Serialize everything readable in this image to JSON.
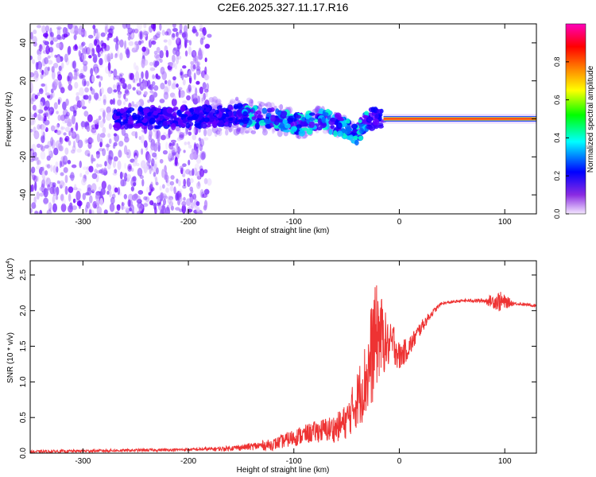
{
  "title": "C2E6.2025.327.11.17.R16",
  "chart_data": [
    {
      "type": "heatmap",
      "name": "spectrogram",
      "xlabel": "Height of straight line (km)",
      "ylabel": "Frequency (Hz)",
      "xlim": [
        -350,
        130
      ],
      "ylim": [
        -50,
        50
      ],
      "x_ticks": [
        "-300",
        "-200",
        "-100",
        "0",
        "100"
      ],
      "x_tick_values": [
        -300,
        -200,
        -100,
        0,
        100
      ],
      "y_ticks": [
        "40",
        "20",
        "0",
        "-20",
        "-40"
      ],
      "y_tick_values": [
        40,
        20,
        0,
        -20,
        -40
      ],
      "colorbar": {
        "label": "Normalized spectral amplitude",
        "range": [
          0,
          1
        ],
        "ticks": [
          "0.0",
          "0.2",
          "0.4",
          "0.6",
          "0.8"
        ],
        "tick_values": [
          0,
          0.2,
          0.4,
          0.6,
          0.8
        ],
        "colors": [
          "#ffffff",
          "#7700ff",
          "#0000ff",
          "#00ffff",
          "#00ff00",
          "#ffff00",
          "#ff8800",
          "#ff0000",
          "#ff00cc"
        ]
      },
      "features": {
        "noise_region_x": [
          -350,
          -180
        ],
        "carrier_start_x": -15,
        "carrier_frequency": 0,
        "ridge_center_points": [
          [
            -270,
            0
          ],
          [
            -200,
            1
          ],
          [
            -150,
            2
          ],
          [
            -120,
            0
          ],
          [
            -90,
            -3
          ],
          [
            -75,
            0
          ],
          [
            -55,
            -4
          ],
          [
            -40,
            -8
          ],
          [
            -30,
            0
          ],
          [
            -15,
            1
          ],
          [
            0,
            0
          ],
          [
            130,
            0
          ]
        ]
      }
    },
    {
      "type": "line",
      "name": "snr",
      "xlabel": "Height of straight line (km)",
      "ylabel": "SNR (10 * v/v)",
      "y_multiplier": "(x10",
      "y_multiplier_exp": "4",
      "xlim": [
        -350,
        130
      ],
      "ylim": [
        0,
        2.7
      ],
      "x_ticks": [
        "-300",
        "-200",
        "-100",
        "0",
        "100"
      ],
      "x_tick_values": [
        -300,
        -200,
        -100,
        0,
        100
      ],
      "y_ticks": [
        "0.0",
        "0.5",
        "1.0",
        "1.5",
        "2.0",
        "2.5"
      ],
      "y_tick_values": [
        0,
        0.5,
        1.0,
        1.5,
        2.0,
        2.5
      ],
      "series": [
        {
          "color": "#ee3333",
          "x": [
            -350,
            -300,
            -250,
            -200,
            -170,
            -150,
            -120,
            -100,
            -80,
            -60,
            -50,
            -40,
            -30,
            -25,
            -20,
            -15,
            -10,
            -5,
            0,
            10,
            20,
            30,
            40,
            60,
            80,
            95,
            100,
            110,
            130
          ],
          "y": [
            0.02,
            0.03,
            0.04,
            0.05,
            0.06,
            0.08,
            0.12,
            0.22,
            0.3,
            0.35,
            0.45,
            0.75,
            1.1,
            1.5,
            1.7,
            1.6,
            1.5,
            1.55,
            1.35,
            1.5,
            1.75,
            1.95,
            2.1,
            2.14,
            2.14,
            2.13,
            2.12,
            2.1,
            2.07
          ],
          "noise_amplitude": [
            0.02,
            0.02,
            0.02,
            0.02,
            0.03,
            0.04,
            0.08,
            0.12,
            0.15,
            0.2,
            0.25,
            0.4,
            0.6,
            0.8,
            0.7,
            0.5,
            0.3,
            0.3,
            0.2,
            0.15,
            0.1,
            0.05,
            0.02,
            0.02,
            0.03,
            0.15,
            0.1,
            0.02,
            0.02
          ]
        }
      ]
    }
  ]
}
